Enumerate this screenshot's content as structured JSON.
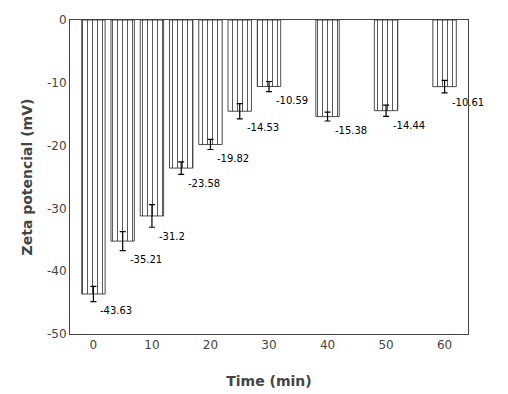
{
  "chart_data": {
    "type": "bar",
    "x": [
      0,
      5,
      10,
      15,
      20,
      25,
      30,
      40,
      50,
      60
    ],
    "values": [
      -43.63,
      -35.21,
      -31.2,
      -23.58,
      -19.82,
      -14.53,
      -10.59,
      -15.38,
      -14.44,
      -10.61
    ],
    "errors": [
      1.2,
      1.5,
      1.8,
      1.0,
      0.8,
      1.2,
      0.8,
      0.7,
      0.9,
      1.0
    ],
    "color": "#6BB8E8",
    "xlabel": "Time (min)",
    "ylabel": "Zeta potencial (mV)",
    "xlim": [
      -4,
      64
    ],
    "xticks": [
      0,
      10,
      20,
      30,
      40,
      50,
      60
    ],
    "ylim": [
      -50,
      0
    ],
    "yticks": [
      0,
      -10,
      -20,
      -30,
      -40,
      -50
    ],
    "data_labels": true,
    "grid": false
  }
}
